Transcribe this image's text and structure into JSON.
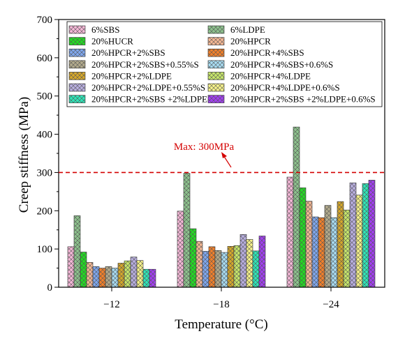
{
  "chart_data": {
    "type": "bar",
    "title": "",
    "xlabel": "Temperature (°C)",
    "ylabel": "Creep stiffness (MPa)",
    "ylim": [
      0,
      700
    ],
    "yticks": [
      0,
      100,
      200,
      300,
      400,
      500,
      600,
      700
    ],
    "grid": false,
    "legend_position": "top, inside plot (two columns)",
    "categories": [
      "−12",
      "−18",
      "−24"
    ],
    "reference_line": {
      "value": 300,
      "label": "Max: 300MPa",
      "color": "#d40000",
      "style": "dashed"
    },
    "series": [
      {
        "name": "6%SBS",
        "color": "#f6b8d8",
        "hatch": "cross",
        "values": [
          106,
          199,
          288
        ]
      },
      {
        "name": "6%LDPE",
        "color": "#8dc28d",
        "hatch": "cross",
        "values": [
          187,
          298,
          419
        ]
      },
      {
        "name": "20%HUCR",
        "color": "#22dd22",
        "hatch": "cross",
        "values": [
          92,
          153,
          260
        ]
      },
      {
        "name": "20%HPCR",
        "color": "#f6b894",
        "hatch": "cross",
        "values": [
          65,
          120,
          225
        ]
      },
      {
        "name": "20%HPCR+2%SBS",
        "color": "#7fa7ee",
        "hatch": "cross",
        "values": [
          54,
          94,
          184
        ]
      },
      {
        "name": "20%HPCR+4%SBS",
        "color": "#f2802a",
        "hatch": "cross",
        "values": [
          50,
          106,
          182
        ]
      },
      {
        "name": "20%HPCR+2%SBS+0.55%S",
        "color": "#b2aa8c",
        "hatch": "cross",
        "values": [
          54,
          96,
          214
        ]
      },
      {
        "name": "20%HPCR+4%SBS+0.6%S",
        "color": "#a8dcf2",
        "hatch": "cross",
        "values": [
          50,
          91,
          182
        ]
      },
      {
        "name": "20%HPCR+2%LDPE",
        "color": "#d6a82a",
        "hatch": "cross",
        "values": [
          63,
          107,
          224
        ]
      },
      {
        "name": "20%HPCR+4%LDPE",
        "color": "#c6e66a",
        "hatch": "cross",
        "values": [
          69,
          109,
          202
        ]
      },
      {
        "name": "20%HPCR+2%LDPE+0.55%S",
        "color": "#b8aee0",
        "hatch": "cross",
        "values": [
          79,
          138,
          273
        ]
      },
      {
        "name": "20%HPCR+4%LDPE+0.6%S",
        "color": "#f6f28a",
        "hatch": "cross",
        "values": [
          70,
          125,
          241
        ]
      },
      {
        "name": "20%HPCR+2%SBS +2%LDPE",
        "color": "#2ee6b8",
        "hatch": "cross",
        "values": [
          47,
          95,
          271
        ]
      },
      {
        "name": "20%HPCR+2%SBS +2%LDPE+0.6%S",
        "color": "#a23ef2",
        "hatch": "cross",
        "values": [
          47,
          134,
          280
        ]
      }
    ]
  }
}
